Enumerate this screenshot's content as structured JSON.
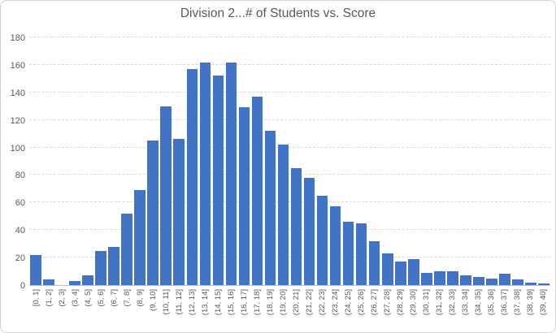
{
  "chart_data": {
    "type": "bar",
    "title": "Division 2...# of Students vs. Score",
    "xlabel": "",
    "ylabel": "",
    "categories": [
      "[0, 1]",
      "(1, 2]",
      "(2, 3]",
      "(3, 4]",
      "(4, 5]",
      "(5, 6]",
      "(6, 7]",
      "(7, 8]",
      "(8, 9]",
      "(9, 10]",
      "(10, 11]",
      "(11, 12]",
      "(12, 13]",
      "(13, 14]",
      "(14, 15]",
      "(15, 16]",
      "(16, 17]",
      "(17, 18]",
      "(18, 19]",
      "(19, 20]",
      "(20, 21]",
      "(21, 22]",
      "(22, 23]",
      "(23, 24]",
      "(24, 25]",
      "(25, 26]",
      "(26, 27]",
      "(27, 28]",
      "(28, 29]",
      "(29, 30]",
      "(30, 31]",
      "(31, 32]",
      "(32, 33]",
      "(33, 34]",
      "(34, 35]",
      "(35, 36]",
      "(36, 37]",
      "(37, 38]",
      "(38, 39]",
      "(39, 40]"
    ],
    "values": [
      22,
      4,
      0,
      3,
      7,
      25,
      28,
      52,
      69,
      105,
      130,
      106,
      157,
      162,
      152,
      162,
      129,
      137,
      112,
      102,
      85,
      78,
      65,
      57,
      46,
      45,
      32,
      23,
      17,
      19,
      9,
      10,
      10,
      7,
      6,
      5,
      8,
      4,
      2,
      1
    ],
    "ylim": [
      0,
      180
    ],
    "yticks": [
      0,
      20,
      40,
      60,
      80,
      100,
      120,
      140,
      160,
      180
    ],
    "grid": true,
    "legend": "none",
    "colors": {
      "bar": "#4472c4",
      "gridline": "#d9d9d9",
      "axis_line": "#bfbfbf",
      "tick_text": "#595959",
      "title_text": "#595959",
      "frame_border": "#d2d2d2",
      "background": "#ffffff"
    }
  }
}
